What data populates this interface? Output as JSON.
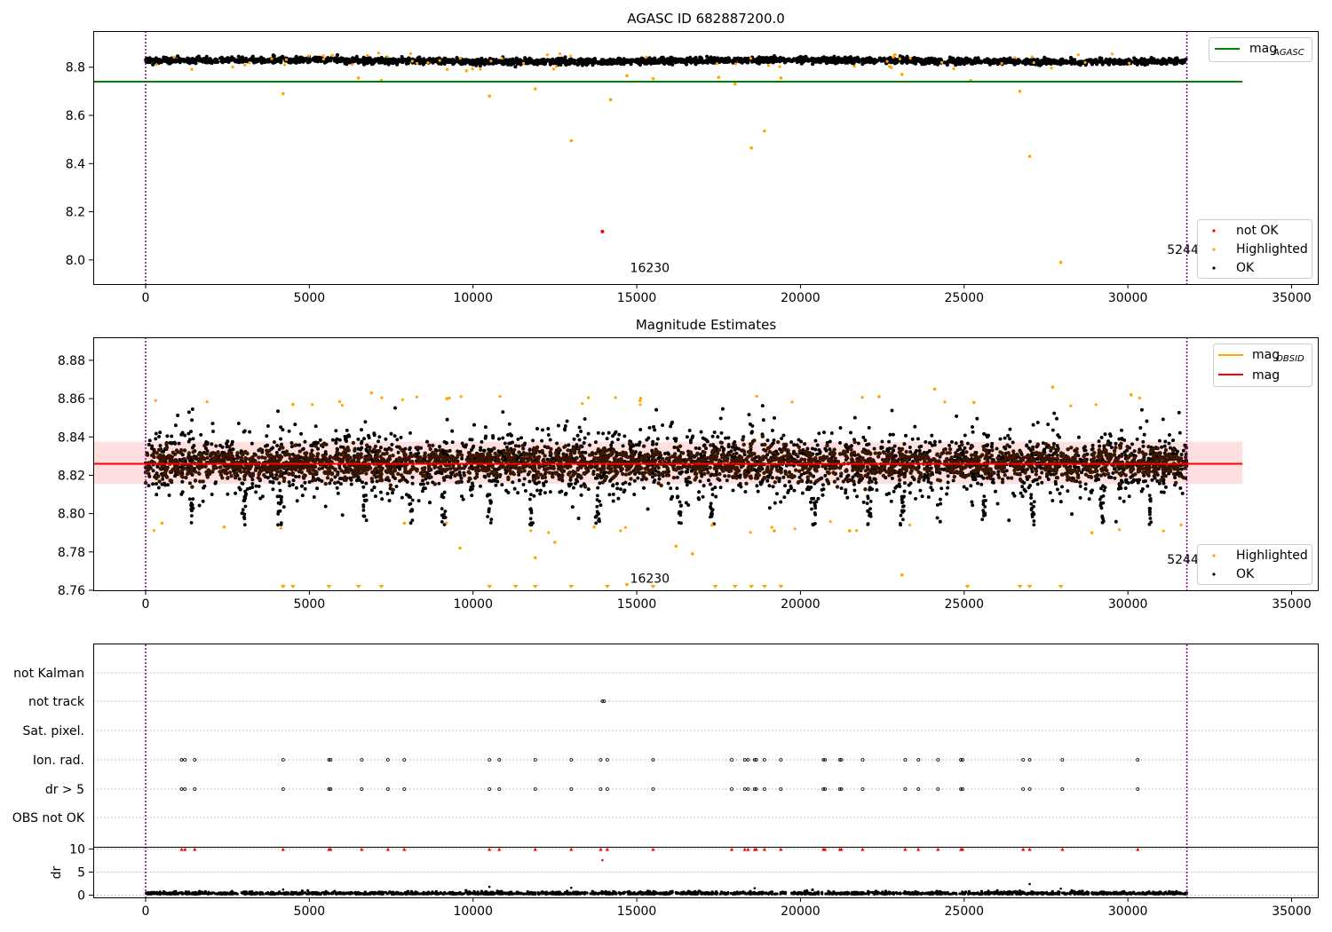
{
  "chart_data": [
    {
      "type": "scatter",
      "title": "AGASC ID 682887200.0",
      "xlim": [
        -1600,
        35800
      ],
      "ylim": [
        7.9,
        8.95
      ],
      "x_ticks": [
        0,
        5000,
        10000,
        15000,
        20000,
        25000,
        30000,
        35000
      ],
      "y_ticks": [
        8.0,
        8.2,
        8.4,
        8.6,
        8.8
      ],
      "y_tick_labels": [
        "8.0",
        "8.2",
        "8.4",
        "8.6",
        "8.8"
      ],
      "vlines": [
        0,
        31800
      ],
      "vline_labels": [
        {
          "x": 15400,
          "y": 7.95,
          "text": "16230"
        },
        {
          "x": 31800,
          "y": 8.025,
          "text": "52441"
        }
      ],
      "hlines": [
        {
          "y": 8.74,
          "x_range": [
            -1600,
            33500
          ],
          "color": "#008000",
          "name": "mag_AGASC"
        }
      ],
      "ok_band": {
        "center": 8.826,
        "spread": 0.012
      },
      "highlighted_points": [
        [
          4200,
          8.69
        ],
        [
          6500,
          8.755
        ],
        [
          7200,
          8.745
        ],
        [
          10500,
          8.68
        ],
        [
          11900,
          8.71
        ],
        [
          13000,
          8.495
        ],
        [
          14200,
          8.665
        ],
        [
          15500,
          8.752
        ],
        [
          18000,
          8.73
        ],
        [
          18500,
          8.465
        ],
        [
          18900,
          8.535
        ],
        [
          26700,
          8.7
        ],
        [
          27000,
          8.43
        ],
        [
          27950,
          7.99
        ],
        [
          25200,
          8.745
        ],
        [
          14700,
          8.765
        ],
        [
          17500,
          8.758
        ],
        [
          19400,
          8.755
        ],
        [
          23100,
          8.77
        ],
        [
          9800,
          8.785
        ]
      ],
      "not_ok_points": [
        [
          13950,
          8.118
        ]
      ],
      "legend_top": [
        {
          "label": "mag",
          "sub": "AGASC",
          "color": "#008000"
        }
      ],
      "legend_bottom": [
        {
          "label": "not OK",
          "color": "#ff0000"
        },
        {
          "label": "Highlighted",
          "color": "#ffa500"
        },
        {
          "label": "OK",
          "color": "#000000"
        }
      ]
    },
    {
      "type": "scatter",
      "title": "Magnitude Estimates",
      "xlim": [
        -1600,
        35800
      ],
      "ylim": [
        8.76,
        8.892
      ],
      "x_ticks": [
        0,
        5000,
        10000,
        15000,
        20000,
        25000,
        30000,
        35000
      ],
      "y_ticks": [
        8.76,
        8.78,
        8.8,
        8.82,
        8.84,
        8.86,
        8.88
      ],
      "y_tick_labels": [
        "8.76",
        "8.78",
        "8.80",
        "8.82",
        "8.84",
        "8.86",
        "8.88"
      ],
      "vlines": [
        0,
        31800
      ],
      "vline_labels": [
        {
          "x": 15400,
          "y": 8.764,
          "text": "16230"
        },
        {
          "x": 31800,
          "y": 8.774,
          "text": "52441"
        }
      ],
      "mag_line": {
        "y": 8.826,
        "band": [
          8.8155,
          8.8375
        ],
        "x_range": [
          -1600,
          33500
        ],
        "color": "#ff0000"
      },
      "obsid_segments": [
        [
          0,
          31800,
          8.826
        ]
      ],
      "highlighted_points": [
        [
          9600,
          8.782
        ],
        [
          11900,
          8.777
        ],
        [
          12500,
          8.785
        ],
        [
          16200,
          8.783
        ],
        [
          16700,
          8.779
        ],
        [
          23100,
          8.768
        ],
        [
          14700,
          8.763
        ],
        [
          21500,
          8.791
        ],
        [
          19200,
          8.791
        ],
        [
          28900,
          8.79
        ],
        [
          6900,
          8.863
        ],
        [
          9200,
          8.86
        ],
        [
          25300,
          8.858
        ],
        [
          24100,
          8.865
        ],
        [
          27700,
          8.866
        ],
        [
          30100,
          8.862
        ],
        [
          15100,
          8.859
        ],
        [
          4500,
          8.857
        ],
        [
          2400,
          8.793
        ],
        [
          500,
          8.795
        ],
        [
          7900,
          8.795
        ],
        [
          13700,
          8.793
        ],
        [
          17300,
          8.794
        ],
        [
          22400,
          8.861
        ]
      ],
      "lower_limit_markers": [
        4200,
        4500,
        5600,
        6500,
        7200,
        10500,
        11300,
        11900,
        13000,
        14100,
        15500,
        17400,
        18000,
        18500,
        18900,
        19400,
        25100,
        26700,
        27000,
        27950
      ],
      "dip_events": [
        1400,
        3000,
        4100,
        6700,
        8100,
        9100,
        10500,
        11800,
        13800,
        16300,
        17300,
        20400,
        22100,
        23100,
        25600,
        27100,
        29200,
        30700
      ],
      "legend_top": [
        {
          "label": "mag",
          "sub": "OBSID",
          "color": "#ffa500"
        },
        {
          "label": "mag",
          "sub": "",
          "color": "#ff0000"
        }
      ],
      "legend_bottom": [
        {
          "label": "Highlighted",
          "color": "#ffa500"
        },
        {
          "label": "OK",
          "color": "#000000"
        }
      ]
    },
    {
      "type": "scatter",
      "title": "",
      "xlim": [
        -1600,
        35800
      ],
      "categories": [
        "not Kalman",
        "not track",
        "Sat. pixel.",
        "Ion. rad.",
        "dr > 5",
        "OBS not OK"
      ],
      "flag_events": [
        1100,
        1200,
        1500,
        4200,
        5600,
        5650,
        6600,
        7400,
        7900,
        10500,
        10800,
        11900,
        13000,
        13900,
        14100,
        15500,
        17900,
        18300,
        18400,
        18600,
        18650,
        18900,
        19400,
        20700,
        20750,
        21200,
        21250,
        21900,
        23200,
        23600,
        24200,
        24900,
        24950,
        26800,
        27000,
        28000,
        30300
      ],
      "not_track_events": [
        13950
      ],
      "vlines": [
        0,
        31800
      ]
    },
    {
      "type": "scatter",
      "title": "",
      "xlim": [
        -1600,
        35800
      ],
      "ylim": [
        -0.5,
        10.5
      ],
      "ylabel": "dr",
      "y_ticks": [
        0,
        5,
        10
      ],
      "y_tick_labels": [
        "0",
        "5",
        "10"
      ],
      "x_ticks": [
        0,
        5000,
        10000,
        15000,
        20000,
        25000,
        30000,
        35000
      ],
      "x_tick_labels": [
        "0",
        "5000",
        "10000",
        "15000",
        "20000",
        "25000",
        "30000",
        "35000"
      ],
      "clipped_markers": [
        1100,
        1200,
        1500,
        4200,
        5600,
        5650,
        6600,
        7400,
        7900,
        10500,
        10800,
        11900,
        13000,
        13900,
        14100,
        15500,
        17900,
        18300,
        18400,
        18600,
        18650,
        18900,
        19400,
        20700,
        20750,
        21200,
        21250,
        21900,
        23200,
        23600,
        24200,
        24900,
        24950,
        26800,
        27000,
        28000,
        30300
      ],
      "outliers": [
        [
          13950,
          7.6
        ],
        [
          10500,
          1.8
        ],
        [
          13000,
          1.6
        ],
        [
          18600,
          1.5
        ],
        [
          27000,
          2.4
        ],
        [
          27950,
          1.4
        ],
        [
          26700,
          1.0
        ],
        [
          4200,
          1.2
        ]
      ],
      "vlines": [
        0,
        31800
      ]
    }
  ]
}
